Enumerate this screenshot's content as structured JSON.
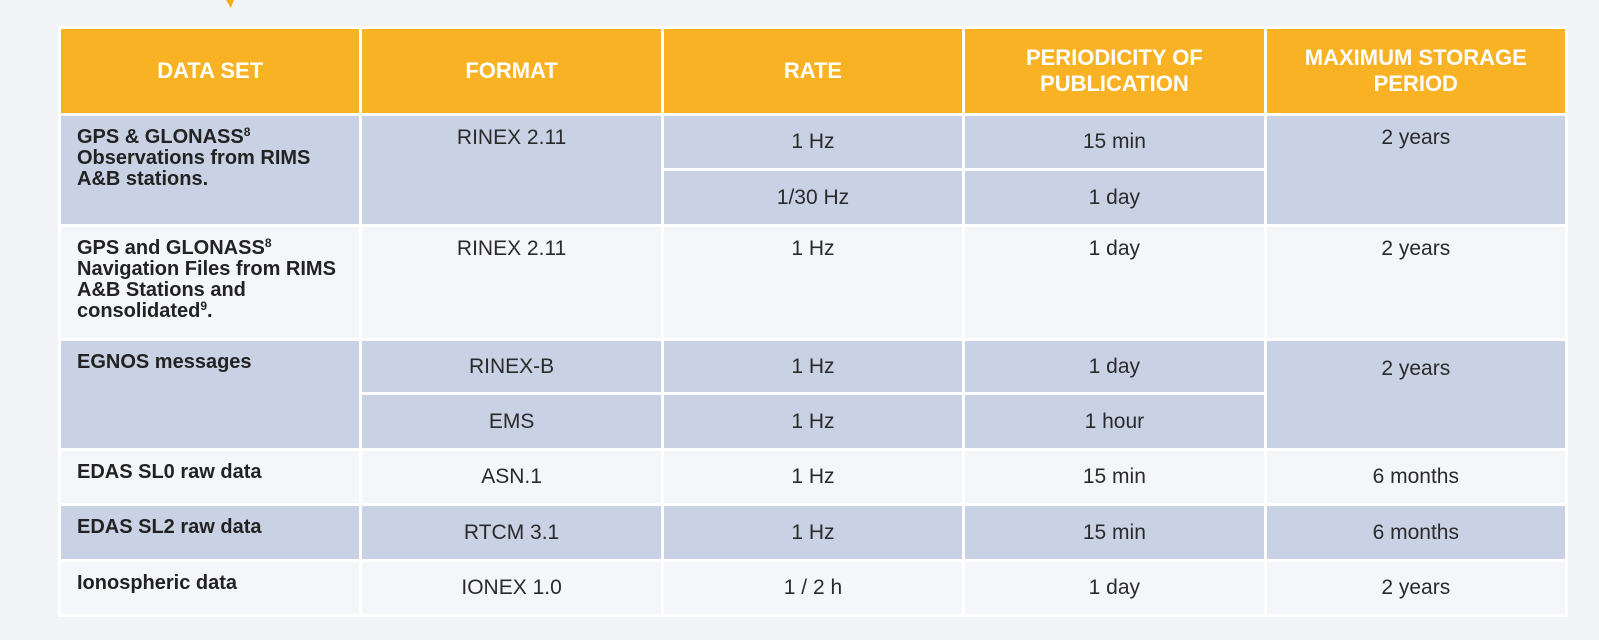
{
  "headers": {
    "dataset": "DATA SET",
    "format": "FORMAT",
    "rate": "RATE",
    "periodicity": "PERIODICITY OF PUBLICATION",
    "storage": "MAXIMUM STORAGE PERIOD"
  },
  "rows": [
    {
      "dataset_line1": "GPS & GLONASS",
      "dataset_sup": "8",
      "dataset_rest": "Observations from RIMS A&B stations.",
      "format": "RINEX 2.11",
      "sub": [
        {
          "rate": "1 Hz",
          "periodicity": "15 min"
        },
        {
          "rate": "1/30 Hz",
          "periodicity": "1 day"
        }
      ],
      "storage": "2 years"
    },
    {
      "dataset_line1": "GPS and GLONASS",
      "dataset_sup": "8",
      "dataset_rest": "Navigation Files from RIMS A&B Stations and consolidated",
      "dataset_sup2": "9",
      "dataset_end": ".",
      "format": "RINEX 2.11",
      "rate": "1 Hz",
      "periodicity": "1 day",
      "storage": "2 years"
    },
    {
      "dataset": "EGNOS messages",
      "sub": [
        {
          "format": "RINEX-B",
          "rate": "1 Hz",
          "periodicity": "1 day"
        },
        {
          "format": "EMS",
          "rate": "1 Hz",
          "periodicity": "1 hour"
        }
      ],
      "storage": "2 years"
    },
    {
      "dataset": "EDAS SL0 raw data",
      "format": "ASN.1",
      "rate": "1 Hz",
      "periodicity": "15 min",
      "storage": "6 months"
    },
    {
      "dataset": "EDAS SL2 raw data",
      "format": "RTCM 3.1",
      "rate": "1 Hz",
      "periodicity": "15 min",
      "storage": "6 months"
    },
    {
      "dataset": "Ionospheric data",
      "format": "IONEX 1.0",
      "rate": "1 / 2 h",
      "periodicity": "1 day",
      "storage": "2 years"
    }
  ],
  "colors": {
    "header_bg": "#f9b223",
    "header_text": "#ffffff",
    "shaded_row": "#c9d2e5",
    "light_row": "#f5f6fa",
    "page_bg": "#f3f4f8"
  }
}
